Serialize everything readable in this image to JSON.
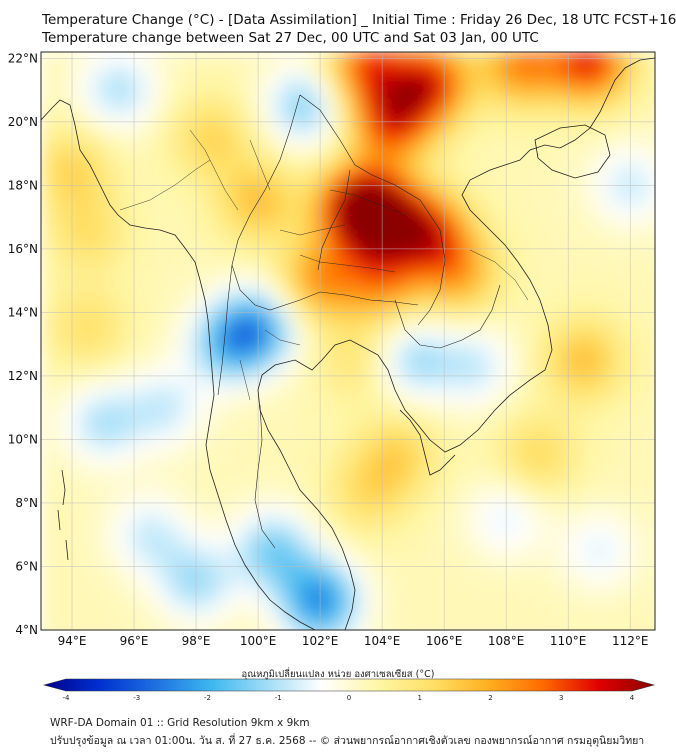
{
  "title": {
    "line1": "Temperature Change (°C) - [Data Assimilation] _ Initial Time : Friday 26 Dec, 18 UTC FCST+168",
    "line2": "Temperature change between Sat 27 Dec, 00 UTC and Sat 03 Jan, 00 UTC"
  },
  "axes": {
    "lat_labels": [
      "22°N",
      "20°N",
      "18°N",
      "16°N",
      "14°N",
      "12°N",
      "10°N",
      "8°N",
      "6°N",
      "4°N"
    ],
    "lon_labels": [
      "94°E",
      "96°E",
      "98°E",
      "100°E",
      "102°E",
      "104°E",
      "106°E",
      "108°E",
      "110°E",
      "112°E"
    ],
    "lat_range": [
      4,
      22.2
    ],
    "lon_range": [
      93,
      112.8
    ]
  },
  "colorbar": {
    "label": "อุณหภูมิเปลี่ยนแปลง หน่วย องศาเซลเซียส (°C)",
    "ticks": [
      "-4",
      "-3",
      "-2",
      "-1",
      "0",
      "1",
      "2",
      "3",
      "4"
    ],
    "range": [
      -4,
      4
    ],
    "colors": [
      "#00008b",
      "#0030d0",
      "#1e6fe0",
      "#3bb7ef",
      "#9fdcf7",
      "#ffffff",
      "#fff7a8",
      "#ffe066",
      "#ffb020",
      "#ff6a00",
      "#e00000",
      "#8b0000"
    ]
  },
  "footer": {
    "line1": "WRF-DA Domain 01 :: Grid Resolution 9km x 9km",
    "line2": "ปรับปรุงข้อมูล ณ เวลา 01:00น. วัน ส. ที่ 27 ธ.ค. 2568 -- © ส่วนพยากรณ์อากาศเชิงตัวเลข กองพยากรณ์อากาศ กรมอุตุนิยมวิทยา"
  },
  "field_blobs": [
    {
      "lon": 104.0,
      "lat": 17.0,
      "value": 3.0
    },
    {
      "lon": 103.2,
      "lat": 17.3,
      "value": 3.2
    },
    {
      "lon": 105.5,
      "lat": 16.5,
      "value": 2.6
    },
    {
      "lon": 104.3,
      "lat": 20.0,
      "value": 2.6
    },
    {
      "lon": 105.5,
      "lat": 21.2,
      "value": 2.8
    },
    {
      "lon": 103.5,
      "lat": 21.8,
      "value": 2.3
    },
    {
      "lon": 110.7,
      "lat": 21.9,
      "value": 2.8
    },
    {
      "lon": 108.5,
      "lat": 21.8,
      "value": 2.0
    },
    {
      "lon": 102.0,
      "lat": 15.0,
      "value": 1.8
    },
    {
      "lon": 104.0,
      "lat": 15.0,
      "value": 1.8
    },
    {
      "lon": 106.5,
      "lat": 15.2,
      "value": 1.5
    },
    {
      "lon": 100.0,
      "lat": 17.5,
      "value": 1.3
    },
    {
      "lon": 98.5,
      "lat": 19.5,
      "value": 1.0
    },
    {
      "lon": 94.0,
      "lat": 18.5,
      "value": 1.0
    },
    {
      "lon": 94.5,
      "lat": 16.5,
      "value": 0.8
    },
    {
      "lon": 110.5,
      "lat": 12.5,
      "value": 1.3
    },
    {
      "lon": 109.0,
      "lat": 9.5,
      "value": 0.9
    },
    {
      "lon": 104.5,
      "lat": 9.5,
      "value": 1.0
    },
    {
      "lon": 103.2,
      "lat": 12.5,
      "value": 0.7
    },
    {
      "lon": 100.0,
      "lat": 13.5,
      "value": -2.0
    },
    {
      "lon": 99.0,
      "lat": 13.0,
      "value": -1.6
    },
    {
      "lon": 95.5,
      "lat": 21.0,
      "value": -1.2
    },
    {
      "lon": 101.5,
      "lat": 20.5,
      "value": -1.5
    },
    {
      "lon": 95.0,
      "lat": 10.5,
      "value": -1.2
    },
    {
      "lon": 97.0,
      "lat": 11.0,
      "value": -1.0
    },
    {
      "lon": 105.0,
      "lat": 12.5,
      "value": -1.3
    },
    {
      "lon": 107.0,
      "lat": 12.3,
      "value": -1.0
    },
    {
      "lon": 102.0,
      "lat": 4.9,
      "value": -2.5
    },
    {
      "lon": 100.5,
      "lat": 6.5,
      "value": -1.6
    },
    {
      "lon": 98.0,
      "lat": 5.5,
      "value": -1.3
    },
    {
      "lon": 96.5,
      "lat": 7.0,
      "value": -1.0
    },
    {
      "lon": 112.0,
      "lat": 18.0,
      "value": -1.0
    },
    {
      "lon": 111.0,
      "lat": 6.5,
      "value": -0.8
    },
    {
      "lon": 108.0,
      "lat": 7.5,
      "value": -0.8
    },
    {
      "lon": 103.5,
      "lat": 8.3,
      "value": 0.8
    },
    {
      "lon": 94.5,
      "lat": 13.5,
      "value": 0.8
    }
  ]
}
